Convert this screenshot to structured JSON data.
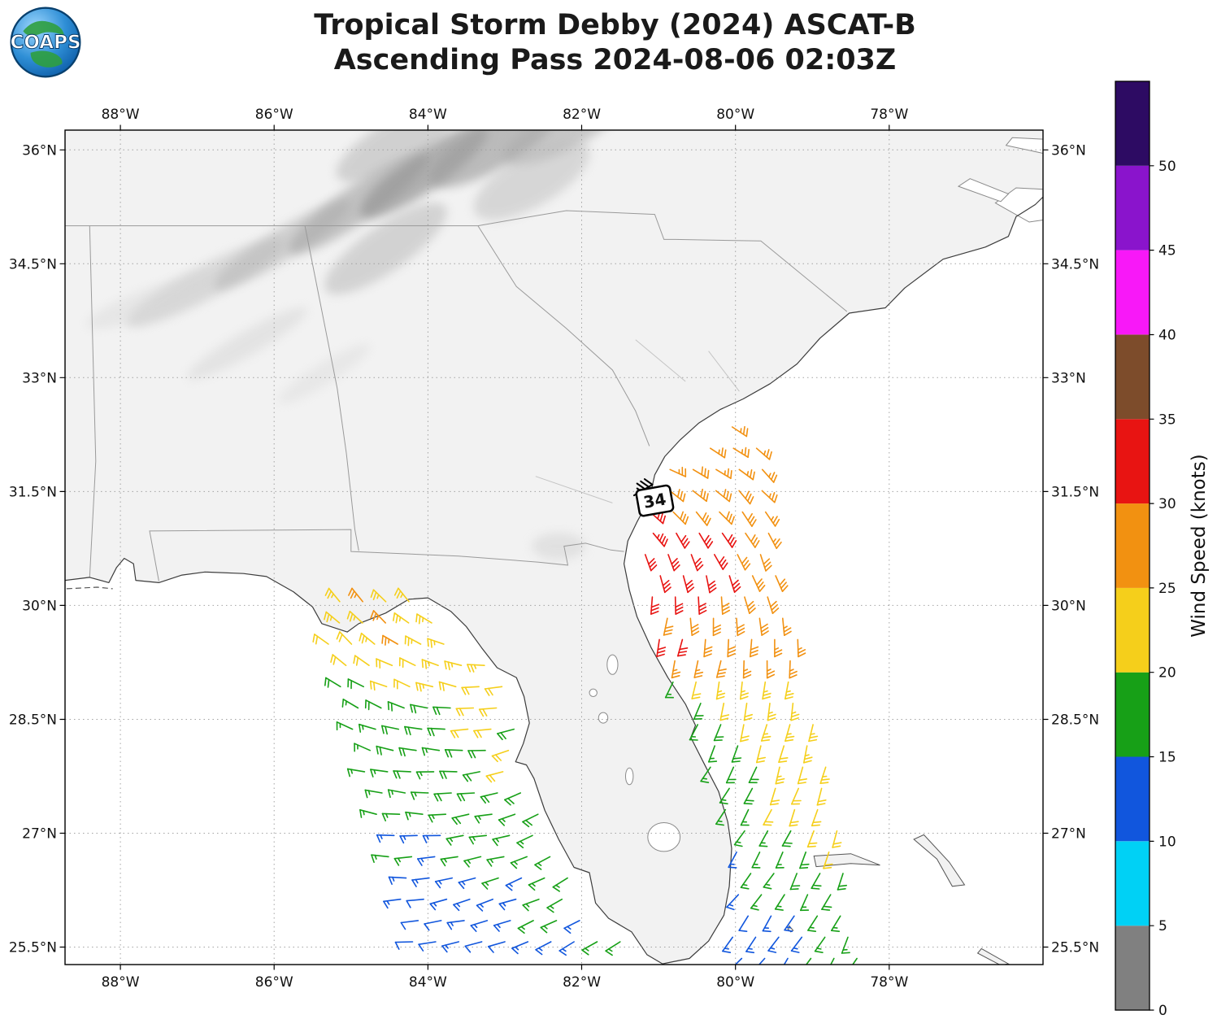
{
  "header": {
    "title_line1": "Tropical Storm Debby (2024) ASCAT-B",
    "title_line2": "Ascending Pass 2024-08-06 02:03Z",
    "logo_text": "COAPS"
  },
  "axes": {
    "lon_ticks": [
      {
        "value": -88,
        "label": "88°W"
      },
      {
        "value": -86,
        "label": "86°W"
      },
      {
        "value": -84,
        "label": "84°W"
      },
      {
        "value": -82,
        "label": "82°W"
      },
      {
        "value": -80,
        "label": "80°W"
      },
      {
        "value": -78,
        "label": "78°W"
      }
    ],
    "lat_ticks": [
      {
        "value": 36,
        "label": "36°N"
      },
      {
        "value": 34.5,
        "label": "34.5°N"
      },
      {
        "value": 33,
        "label": "33°N"
      },
      {
        "value": 31.5,
        "label": "31.5°N"
      },
      {
        "value": 30,
        "label": "30°N"
      },
      {
        "value": 28.5,
        "label": "28.5°N"
      },
      {
        "value": 27,
        "label": "27°N"
      },
      {
        "value": 25.5,
        "label": "25.5°N"
      }
    ]
  },
  "colorbar": {
    "label": "Wind Speed (knots)",
    "min": 0,
    "max": 55,
    "tick_values": [
      0,
      5,
      10,
      15,
      20,
      25,
      30,
      35,
      40,
      45,
      50
    ],
    "bins": [
      {
        "from": 0,
        "to": 5,
        "color": "#808080"
      },
      {
        "from": 5,
        "to": 10,
        "color": "#00d1f5"
      },
      {
        "from": 10,
        "to": 15,
        "color": "#1156dd"
      },
      {
        "from": 15,
        "to": 20,
        "color": "#17a017"
      },
      {
        "from": 20,
        "to": 25,
        "color": "#f5cf1b"
      },
      {
        "from": 25,
        "to": 30,
        "color": "#f29111"
      },
      {
        "from": 30,
        "to": 35,
        "color": "#e81412"
      },
      {
        "from": 35,
        "to": 40,
        "color": "#7d4c2b"
      },
      {
        "from": 40,
        "to": 45,
        "color": "#f818f8"
      },
      {
        "from": 45,
        "to": 50,
        "color": "#8a14cc"
      },
      {
        "from": 50,
        "to": 55,
        "color": "#2d0b63"
      }
    ]
  },
  "storm_marker": {
    "label": "34",
    "lon": -81.05,
    "lat": 31.38
  },
  "chart_data": {
    "type": "scatter",
    "subtype": "satellite_wind_bar_barbs_map",
    "title": "Tropical Storm Debby (2024) ASCAT-B — Ascending Pass 2024-08-06 02:03Z",
    "satellite": "ASCAT-B",
    "pass_type": "Ascending",
    "datetime_utc": "2024-08-06 02:03Z",
    "units": "knots",
    "extent": {
      "lon_min": -88.72,
      "lon_max": -76.0,
      "lat_min": 25.27,
      "lat_max": 36.26
    },
    "wind_model": {
      "storm_center": [
        -82.4,
        30.7
      ],
      "inflow_deg": 25
    },
    "station_barb": {
      "lon": -81.32,
      "lat": 31.45,
      "dir_from_deg": 60,
      "speed_kt": 35,
      "color": "#000000"
    },
    "swaths": [
      {
        "name": "gulf-swath",
        "d_lon": 0.3,
        "west_edge": [
          -85.45,
          -84.2
        ],
        "east_edge": [
          -83.55,
          -81.35
        ],
        "coast_clip": "gulf_coast",
        "clip_side": "east",
        "coast_margin": 0.12,
        "top_cut": {
          "lat": 29.5,
          "lon": -85.45,
          "slope": 0.55
        },
        "rows": [
          [
            30.05,
            23,
            26.5,
            21
          ],
          [
            29.77,
            22,
            26,
            23
          ],
          [
            29.49,
            21,
            26,
            23
          ],
          [
            29.21,
            19,
            23,
            22
          ],
          [
            28.93,
            18,
            22,
            21
          ],
          [
            28.65,
            17,
            19.5,
            21
          ],
          [
            28.37,
            17,
            19,
            21
          ],
          [
            28.09,
            16,
            18,
            20.5
          ],
          [
            27.81,
            16,
            18,
            20.5
          ],
          [
            27.53,
            16,
            17.5,
            19
          ],
          [
            27.25,
            15.5,
            17,
            18
          ],
          [
            26.97,
            14,
            16,
            18
          ],
          [
            26.69,
            15,
            16,
            17
          ],
          [
            26.41,
            13,
            15,
            17
          ],
          [
            26.13,
            12.5,
            14.5,
            16.5
          ],
          [
            25.85,
            12,
            14,
            16
          ],
          [
            25.57,
            11.5,
            13,
            15.5
          ]
        ]
      },
      {
        "name": "atlantic-swath",
        "d_lon": 0.3,
        "west_edge": [
          -81.45,
          -80.3
        ],
        "east_edge": [
          -79.75,
          -78.3
        ],
        "coast_clip": "atl_coast",
        "clip_side": "west",
        "coast_margin": 0.08,
        "top_cut": {
          "lat": 31.7,
          "lon": -81.05,
          "slope": 1.55
        },
        "rows": [
          [
            32.35,
            26.5,
            27,
            27
          ],
          [
            32.07,
            27,
            27.5,
            26.5
          ],
          [
            31.79,
            28,
            28,
            26.5
          ],
          [
            31.51,
            30.5,
            28.5,
            26.5
          ],
          [
            31.23,
            31.5,
            29,
            27
          ],
          [
            30.95,
            32,
            30.5,
            27.5
          ],
          [
            30.67,
            32,
            31,
            27.5
          ],
          [
            30.39,
            32,
            31,
            27
          ],
          [
            30.11,
            31.5,
            30.5,
            26.5
          ],
          [
            29.83,
            31,
            29,
            26
          ],
          [
            29.55,
            30.5,
            28,
            25.5
          ],
          [
            29.27,
            27,
            27,
            25
          ],
          [
            28.99,
            18,
            24,
            24
          ],
          [
            28.71,
            17,
            23.5,
            23.5
          ],
          [
            28.43,
            17,
            23,
            23
          ],
          [
            28.15,
            16.5,
            22.5,
            23
          ],
          [
            27.87,
            16,
            22,
            22.5
          ],
          [
            27.59,
            16,
            21.5,
            22
          ],
          [
            27.31,
            16,
            20,
            21.5
          ],
          [
            27.03,
            15.5,
            19,
            21
          ],
          [
            26.75,
            15,
            18,
            20.5
          ],
          [
            26.47,
            14.5,
            17,
            19.5
          ],
          [
            26.19,
            14,
            16.5,
            18
          ],
          [
            25.91,
            13,
            15.5,
            17
          ],
          [
            25.63,
            12.5,
            14.5,
            16.5
          ],
          [
            25.35,
            12,
            13.5,
            16
          ]
        ]
      }
    ],
    "coast_clips": {
      "gulf_coast": [
        [
          30.1,
          -84.05
        ],
        [
          29.9,
          -83.95
        ],
        [
          29.6,
          -83.5
        ],
        [
          29.2,
          -83.05
        ],
        [
          28.8,
          -82.72
        ],
        [
          28.3,
          -82.68
        ],
        [
          27.9,
          -82.72
        ],
        [
          27.4,
          -82.5
        ],
        [
          27.0,
          -82.3
        ],
        [
          26.5,
          -82.0
        ],
        [
          26.0,
          -81.8
        ],
        [
          25.45,
          -81.2
        ]
      ],
      "atl_coast": [
        [
          32.4,
          -80.45
        ],
        [
          32.0,
          -80.8
        ],
        [
          31.6,
          -81.05
        ],
        [
          31.2,
          -81.2
        ],
        [
          30.8,
          -81.42
        ],
        [
          30.4,
          -81.42
        ],
        [
          30.0,
          -81.3
        ],
        [
          29.5,
          -81.12
        ],
        [
          29.0,
          -80.9
        ],
        [
          28.6,
          -80.6
        ],
        [
          28.3,
          -80.55
        ],
        [
          28.0,
          -80.45
        ],
        [
          27.5,
          -80.28
        ],
        [
          27.0,
          -80.1
        ],
        [
          26.5,
          -80.03
        ],
        [
          26.0,
          -80.05
        ],
        [
          25.45,
          -80.15
        ]
      ]
    }
  },
  "map": {
    "land_color": "#f2f2f2",
    "coast_color": "#3c3c3c",
    "border_color": "#9a9a9a",
    "river_color": "#c4c4c4",
    "grid_color": "#9a9a9a",
    "water_color": "#ffffff",
    "coastline": [
      [
        -88.72,
        30.33
      ],
      [
        -88.4,
        30.37
      ],
      [
        -88.15,
        30.3
      ],
      [
        -88.05,
        30.5
      ],
      [
        -87.95,
        30.62
      ],
      [
        -87.83,
        30.55
      ],
      [
        -87.8,
        30.33
      ],
      [
        -87.5,
        30.3
      ],
      [
        -87.2,
        30.4
      ],
      [
        -86.9,
        30.44
      ],
      [
        -86.4,
        30.42
      ],
      [
        -86.1,
        30.38
      ],
      [
        -85.75,
        30.18
      ],
      [
        -85.5,
        29.98
      ],
      [
        -85.38,
        29.76
      ],
      [
        -85.05,
        29.65
      ],
      [
        -84.9,
        29.76
      ],
      [
        -84.55,
        29.9
      ],
      [
        -84.25,
        30.08
      ],
      [
        -84.0,
        30.1
      ],
      [
        -83.7,
        29.92
      ],
      [
        -83.5,
        29.72
      ],
      [
        -83.3,
        29.44
      ],
      [
        -83.1,
        29.18
      ],
      [
        -82.85,
        29.05
      ],
      [
        -82.75,
        28.8
      ],
      [
        -82.68,
        28.45
      ],
      [
        -82.76,
        28.18
      ],
      [
        -82.86,
        27.94
      ],
      [
        -82.72,
        27.9
      ],
      [
        -82.62,
        27.72
      ],
      [
        -82.48,
        27.3
      ],
      [
        -82.3,
        26.92
      ],
      [
        -82.1,
        26.55
      ],
      [
        -81.9,
        26.48
      ],
      [
        -81.82,
        26.08
      ],
      [
        -81.65,
        25.88
      ],
      [
        -81.35,
        25.7
      ],
      [
        -81.15,
        25.4
      ],
      [
        -80.95,
        25.28
      ],
      [
        -80.6,
        25.35
      ],
      [
        -80.35,
        25.58
      ],
      [
        -80.15,
        25.92
      ],
      [
        -80.08,
        26.3
      ],
      [
        -80.05,
        26.8
      ],
      [
        -80.1,
        27.15
      ],
      [
        -80.22,
        27.55
      ],
      [
        -80.38,
        27.86
      ],
      [
        -80.58,
        28.26
      ],
      [
        -80.52,
        28.42
      ],
      [
        -80.65,
        28.7
      ],
      [
        -80.88,
        29.05
      ],
      [
        -81.1,
        29.45
      ],
      [
        -81.28,
        29.85
      ],
      [
        -81.38,
        30.2
      ],
      [
        -81.45,
        30.55
      ],
      [
        -81.4,
        30.85
      ],
      [
        -81.28,
        31.1
      ],
      [
        -81.12,
        31.4
      ],
      [
        -81.05,
        31.72
      ],
      [
        -80.92,
        31.96
      ],
      [
        -80.72,
        32.18
      ],
      [
        -80.48,
        32.4
      ],
      [
        -80.2,
        32.58
      ],
      [
        -79.9,
        32.72
      ],
      [
        -79.55,
        32.92
      ],
      [
        -79.2,
        33.18
      ],
      [
        -78.9,
        33.52
      ],
      [
        -78.52,
        33.85
      ],
      [
        -78.05,
        33.92
      ],
      [
        -77.8,
        34.18
      ],
      [
        -77.3,
        34.56
      ],
      [
        -76.75,
        34.72
      ],
      [
        -76.45,
        34.86
      ],
      [
        -76.35,
        35.12
      ],
      [
        -76.1,
        35.28
      ],
      [
        -75.98,
        35.4
      ]
    ],
    "state_borders": [
      [
        [
          -88.72,
          35.0
        ],
        [
          -83.35,
          35.0
        ]
      ],
      [
        [
          -88.4,
          35.0
        ],
        [
          -88.32,
          31.9
        ],
        [
          -88.4,
          30.37
        ]
      ],
      [
        [
          -85.6,
          35.0
        ],
        [
          -85.18,
          32.86
        ],
        [
          -85.06,
          32.0
        ],
        [
          -84.95,
          31.0
        ],
        [
          -84.9,
          30.72
        ]
      ],
      [
        [
          -87.5,
          30.32
        ],
        [
          -87.62,
          30.98
        ],
        [
          -85.0,
          31.0
        ],
        [
          -85.0,
          30.71
        ],
        [
          -83.6,
          30.65
        ],
        [
          -82.56,
          30.57
        ],
        [
          -82.18,
          30.53
        ],
        [
          -82.23,
          30.78
        ],
        [
          -81.95,
          30.82
        ],
        [
          -81.62,
          30.73
        ],
        [
          -81.45,
          30.71
        ]
      ],
      [
        [
          -81.12,
          32.1
        ],
        [
          -81.3,
          32.56
        ],
        [
          -81.6,
          33.1
        ],
        [
          -82.2,
          33.65
        ],
        [
          -82.85,
          34.2
        ],
        [
          -83.1,
          34.6
        ],
        [
          -83.35,
          35.0
        ]
      ],
      [
        [
          -83.35,
          35.0
        ],
        [
          -82.78,
          35.1
        ],
        [
          -82.2,
          35.2
        ],
        [
          -81.05,
          35.15
        ],
        [
          -80.93,
          34.82
        ],
        [
          -80.78,
          34.82
        ],
        [
          -79.67,
          34.8
        ],
        [
          -78.55,
          33.87
        ]
      ]
    ],
    "rivers": [
      [
        [
          -80.35,
          33.35
        ],
        [
          -79.95,
          32.82
        ]
      ],
      [
        [
          -81.3,
          33.5
        ],
        [
          -80.65,
          32.95
        ]
      ],
      [
        [
          -82.6,
          31.7
        ],
        [
          -81.6,
          31.35
        ]
      ]
    ],
    "lakes": [
      [
        -80.93,
        26.95,
        0.21,
        0.19
      ],
      [
        -81.6,
        29.22,
        0.07,
        0.13
      ],
      [
        -81.72,
        28.52,
        0.06,
        0.07
      ],
      [
        -81.38,
        27.75,
        0.05,
        0.11
      ],
      [
        -81.85,
        28.85,
        0.05,
        0.05
      ]
    ],
    "islands": [
      [
        [
          -78.98,
          26.7
        ],
        [
          -78.5,
          26.73
        ],
        [
          -78.12,
          26.58
        ],
        [
          -78.5,
          26.6
        ],
        [
          -78.95,
          26.56
        ]
      ],
      [
        [
          -77.55,
          26.98
        ],
        [
          -77.22,
          26.62
        ],
        [
          -77.02,
          26.32
        ],
        [
          -77.18,
          26.3
        ],
        [
          -77.38,
          26.66
        ],
        [
          -77.68,
          26.92
        ]
      ],
      [
        [
          -79.3,
          25.78
        ],
        [
          -79.25,
          25.72
        ],
        [
          -79.28,
          25.7
        ],
        [
          -79.32,
          25.74
        ]
      ],
      [
        [
          -76.8,
          25.48
        ],
        [
          -76.45,
          25.28
        ],
        [
          -76.55,
          25.26
        ],
        [
          -76.85,
          25.42
        ]
      ]
    ],
    "barrier_islands": [
      [
        [
          -88.7,
          30.22
        ],
        [
          -88.3,
          30.24
        ],
        [
          -88.1,
          30.22
        ]
      ]
    ],
    "sounds": [
      [
        [
          -76.62,
          35.3
        ],
        [
          -76.18,
          35.05
        ],
        [
          -75.98,
          35.08
        ],
        [
          -75.98,
          35.48
        ],
        [
          -76.35,
          35.5
        ]
      ],
      [
        [
          -76.48,
          36.06
        ],
        [
          -75.98,
          35.95
        ],
        [
          -75.98,
          36.14
        ],
        [
          -76.4,
          36.16
        ]
      ],
      [
        [
          -77.1,
          35.52
        ],
        [
          -76.55,
          35.32
        ],
        [
          -76.45,
          35.42
        ],
        [
          -76.95,
          35.62
        ]
      ]
    ],
    "relief": [
      [
        -86.9,
        34.25,
        1.15,
        0.22,
        -28,
        0.55,
        "#c4c4c4"
      ],
      [
        -85.9,
        34.75,
        1.05,
        0.2,
        -32,
        0.6,
        "#b8b8b8"
      ],
      [
        -84.9,
        35.3,
        1.1,
        0.24,
        -35,
        0.65,
        "#a8a8a8"
      ],
      [
        -84.05,
        35.72,
        1.0,
        0.26,
        -35,
        0.7,
        "#949494"
      ],
      [
        -83.15,
        36.05,
        0.95,
        0.3,
        -30,
        0.65,
        "#9e9e9e"
      ],
      [
        -82.25,
        36.25,
        0.85,
        0.26,
        -26,
        0.6,
        "#ababab"
      ],
      [
        -86.35,
        33.45,
        0.9,
        0.16,
        -30,
        0.45,
        "#d2d2d2"
      ],
      [
        -85.35,
        33.05,
        0.7,
        0.14,
        -32,
        0.4,
        "#d8d8d8"
      ],
      [
        -84.55,
        34.7,
        0.95,
        0.3,
        -35,
        0.5,
        "#b4b4b4"
      ],
      [
        -82.65,
        35.6,
        0.85,
        0.34,
        -30,
        0.5,
        "#bcbcbc"
      ],
      [
        -87.6,
        34.0,
        0.9,
        0.18,
        -20,
        0.4,
        "#d5d5d5"
      ],
      [
        -84.4,
        36.1,
        0.9,
        0.3,
        -30,
        0.5,
        "#b0b0b0"
      ],
      [
        -82.3,
        30.78,
        0.35,
        0.18,
        0,
        0.5,
        "#d0d0d0"
      ]
    ]
  }
}
